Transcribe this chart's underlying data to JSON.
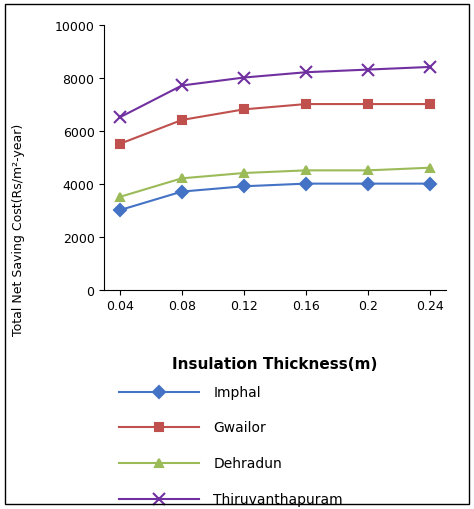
{
  "x": [
    0.04,
    0.08,
    0.12,
    0.16,
    0.2,
    0.24
  ],
  "Imphal": [
    3000,
    3700,
    3900,
    4000,
    4000,
    4000
  ],
  "Gwailor": [
    5500,
    6400,
    6800,
    7000,
    7000,
    7000
  ],
  "Dehradun": [
    3500,
    4200,
    4400,
    4500,
    4500,
    4600
  ],
  "Thiruvanthapuram": [
    6500,
    7700,
    8000,
    8200,
    8300,
    8400
  ],
  "colors": {
    "Imphal": "#4472c4",
    "Gwailor": "#c0504d",
    "Dehradun": "#9bbb59",
    "Thiruvanthapuram": "#7030a0"
  },
  "markers": {
    "Imphal": "D",
    "Gwailor": "s",
    "Dehradun": "^",
    "Thiruvanthapuram": "x"
  },
  "ylabel": "Total Net Saving Cost(Rs/m²-year)",
  "xlabel": "Insulation Thickness(m)",
  "ylim": [
    0,
    10000
  ],
  "yticks": [
    0,
    2000,
    4000,
    6000,
    8000,
    10000
  ],
  "xticks": [
    0.04,
    0.08,
    0.12,
    0.16,
    0.2,
    0.24
  ],
  "series_order": [
    "Imphal",
    "Gwailor",
    "Dehradun",
    "Thiruvanthapuram"
  ]
}
